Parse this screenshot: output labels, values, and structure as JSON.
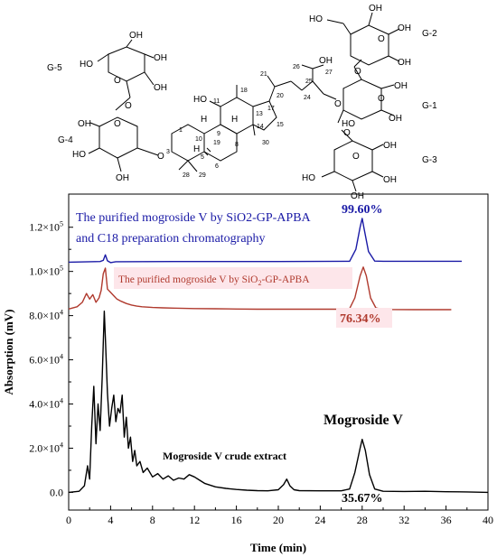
{
  "chart_data": {
    "type": "line",
    "xlabel": "Time (min)",
    "ylabel": "Absorption (mV)",
    "xlim": [
      0,
      40
    ],
    "ylim": [
      -8000,
      135000
    ],
    "x_ticks": [
      0,
      4,
      8,
      12,
      16,
      20,
      24,
      28,
      32,
      36,
      40
    ],
    "y_ticks": [
      {
        "value": 0,
        "mantissa": "0.0",
        "exp": ""
      },
      {
        "value": 20000,
        "mantissa": "2.0×10",
        "exp": "4"
      },
      {
        "value": 40000,
        "mantissa": "4.0×10",
        "exp": "4"
      },
      {
        "value": 60000,
        "mantissa": "6.0×10",
        "exp": "4"
      },
      {
        "value": 80000,
        "mantissa": "8.0×10",
        "exp": "4"
      },
      {
        "value": 100000,
        "mantissa": "1.0×10",
        "exp": "5"
      },
      {
        "value": 120000,
        "mantissa": "1.2×10",
        "exp": "5"
      }
    ],
    "grid": false,
    "series": [
      {
        "color": "#1a1aa6",
        "x": [
          0,
          3.0,
          3.3,
          3.5,
          3.7,
          4.0,
          4.5,
          10,
          20,
          26.8,
          27.4,
          27.8,
          28.0,
          28.2,
          28.6,
          29.2,
          30,
          37.5
        ],
        "y": [
          104200,
          104500,
          105000,
          107500,
          104800,
          104000,
          104400,
          104500,
          104500,
          104600,
          110000,
          120000,
          124000,
          119000,
          109000,
          104700,
          104600,
          104600
        ]
      },
      {
        "color": "#b03a2e",
        "x": [
          0,
          0.8,
          1.3,
          1.7,
          2.0,
          2.3,
          2.6,
          2.9,
          3.1,
          3.3,
          3.5,
          3.7,
          4.0,
          4.3,
          4.6,
          5.0,
          5.5,
          6.0,
          6.5,
          7.0,
          8.0,
          9.0,
          10,
          12,
          14,
          16,
          18,
          20,
          22,
          24,
          26,
          26.8,
          27.3,
          27.8,
          28.1,
          28.4,
          28.8,
          29.3,
          30,
          33,
          36.5
        ],
        "y": [
          83000,
          84000,
          86000,
          90000,
          87500,
          89500,
          86000,
          88000,
          91500,
          99000,
          101500,
          92000,
          90500,
          89000,
          87500,
          86500,
          85500,
          84800,
          84300,
          84000,
          83700,
          83500,
          83400,
          83200,
          83100,
          83000,
          82900,
          82900,
          82900,
          82900,
          82900,
          83200,
          88000,
          98000,
          102000,
          98000,
          88000,
          83500,
          82800,
          82700,
          82700
        ]
      },
      {
        "color": "#000000",
        "x": [
          0,
          1.0,
          1.5,
          1.8,
          2.0,
          2.2,
          2.4,
          2.6,
          2.8,
          3.0,
          3.2,
          3.4,
          3.5,
          3.7,
          3.9,
          4.1,
          4.3,
          4.5,
          4.7,
          4.9,
          5.1,
          5.3,
          5.5,
          5.7,
          5.9,
          6.1,
          6.3,
          6.5,
          6.8,
          7.1,
          7.5,
          8.0,
          8.5,
          9.0,
          9.5,
          10.0,
          10.5,
          11.0,
          11.5,
          12.0,
          12.5,
          13.0,
          14.0,
          15.0,
          16.0,
          17.0,
          18.0,
          19.0,
          20.0,
          20.5,
          20.8,
          21.1,
          21.5,
          22.0,
          24.0,
          26.0,
          26.8,
          27.3,
          27.8,
          28.0,
          28.3,
          28.7,
          29.2,
          30.0,
          32.0,
          34.0,
          36.0,
          38.0,
          40.0
        ],
        "y": [
          0,
          500,
          3000,
          12000,
          6000,
          30000,
          48000,
          22000,
          40000,
          28000,
          52000,
          82000,
          70000,
          45000,
          30000,
          38000,
          44000,
          32000,
          38000,
          36000,
          44000,
          25000,
          34000,
          20000,
          25000,
          14000,
          19000,
          12000,
          14000,
          9000,
          11000,
          7000,
          8500,
          6000,
          7500,
          5500,
          6500,
          6000,
          8000,
          7000,
          5500,
          4000,
          2500,
          1800,
          1300,
          1000,
          800,
          700,
          1200,
          3500,
          6000,
          3000,
          1200,
          800,
          700,
          700,
          1500,
          9000,
          20000,
          24000,
          19000,
          8000,
          1500,
          500,
          400,
          500,
          300,
          200,
          0
        ]
      }
    ],
    "annotations": [
      {
        "text": "The purified mogroside V by SiO2-GP-APBA",
        "color": "#1a1aa6"
      },
      {
        "text": "and C18 preparation chromatography",
        "color": "#1a1aa6"
      },
      {
        "text": "99.60%",
        "color": "#1a1aa6"
      },
      {
        "text": "76.34%",
        "color": "#b03a2e"
      },
      {
        "text": "Mogroside V",
        "color": "#000000"
      },
      {
        "text": "Mogroside V crude extract",
        "color": "#000000"
      },
      {
        "text": "35.67%",
        "color": "#000000"
      }
    ]
  },
  "labels": {
    "blue_line1": "The purified mogroside V by SiO2-GP-APBA",
    "blue_line2": "and C18 preparation chromatography",
    "blue_pct": "99.60%",
    "red_pre": "The purified mogroside V by SiO",
    "red_sub": "2",
    "red_post": "-GP-APBA",
    "red_pct": "76.34%",
    "mogroside_v": "Mogroside V",
    "crude_extract": "Mogroside V crude extract",
    "black_pct": "35.67%"
  },
  "structure": {
    "glucose_labels": [
      "G-5",
      "G-4",
      "G-2",
      "G-1",
      "G-3"
    ],
    "oh": "OH",
    "ho": "HO",
    "o": "O",
    "h": "H",
    "carbon_numbers": [
      "1",
      "3",
      "5",
      "6",
      "8",
      "9",
      "10",
      "11",
      "13",
      "14",
      "15",
      "17",
      "18",
      "19",
      "20",
      "21",
      "24",
      "25",
      "26",
      "27",
      "28",
      "29",
      "30"
    ]
  }
}
